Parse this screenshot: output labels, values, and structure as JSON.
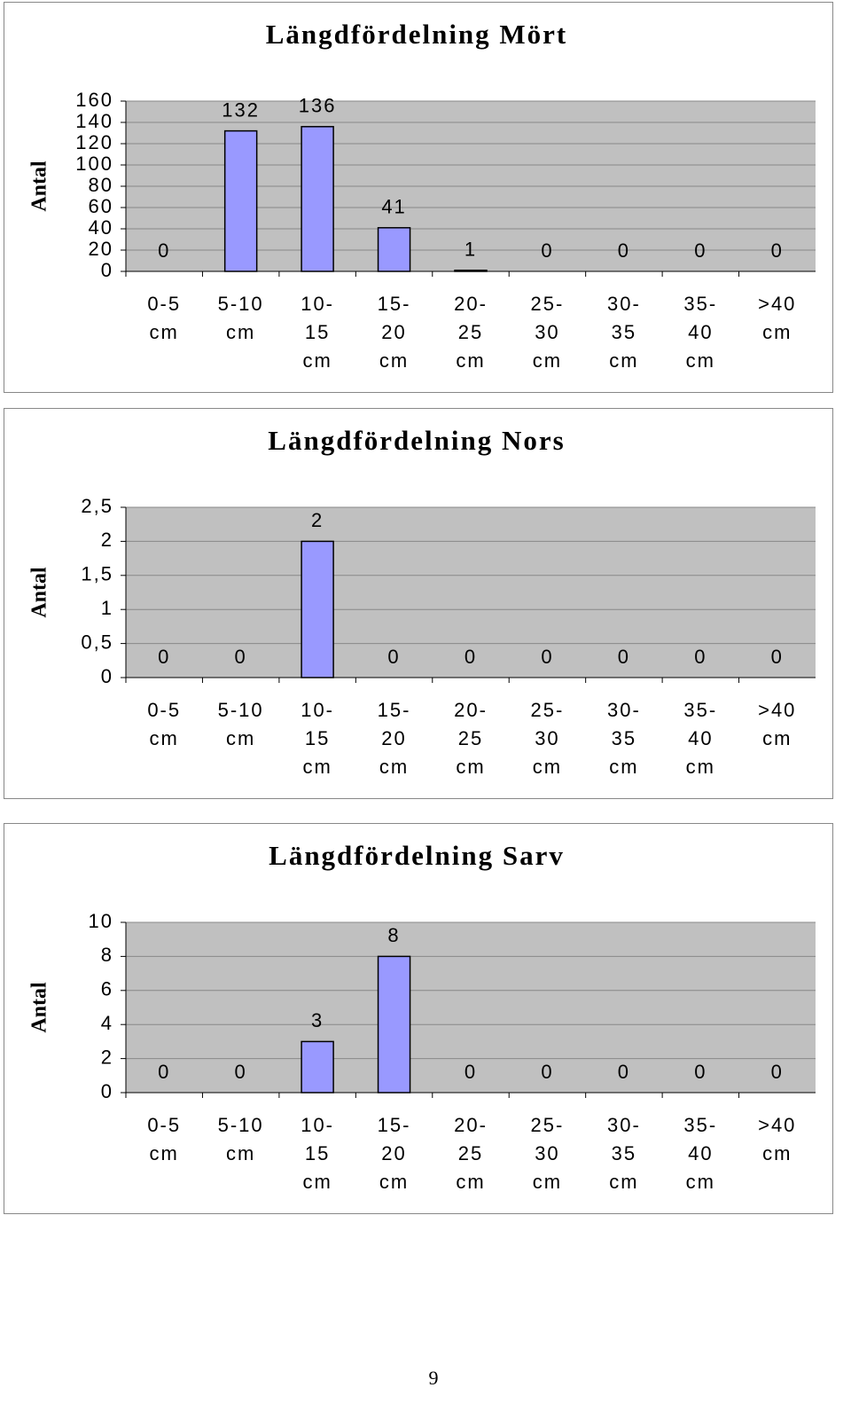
{
  "chart_data": [
    {
      "type": "bar",
      "title": "Längdfördelning Mört",
      "y_label": "Antal",
      "categories": [
        "0-5 cm",
        "5-10 cm",
        "10-15 cm",
        "15-20 cm",
        "20-25 cm",
        "25-30 cm",
        "30-35 cm",
        "35-40 cm",
        ">40 cm"
      ],
      "values": [
        0,
        132,
        136,
        41,
        1,
        0,
        0,
        0,
        0
      ],
      "color": "#9999ff",
      "ylim": [
        0,
        160
      ],
      "yticks": [
        0,
        20,
        40,
        60,
        80,
        100,
        120,
        140,
        160
      ],
      "grid": true
    },
    {
      "type": "bar",
      "title": "Längdfördelning Nors",
      "y_label": "Antal",
      "categories": [
        "0-5 cm",
        "5-10 cm",
        "10-15 cm",
        "15-20 cm",
        "20-25 cm",
        "25-30 cm",
        "30-35 cm",
        "35-40 cm",
        ">40 cm"
      ],
      "values": [
        0,
        0,
        2,
        0,
        0,
        0,
        0,
        0,
        0
      ],
      "color": "#9999ff",
      "ylim": [
        0,
        2.5
      ],
      "yticks": [
        0,
        {
          "value": 0.5,
          "label": "0,5"
        },
        1,
        {
          "value": 1.5,
          "label": "1,5"
        },
        2,
        {
          "value": 2.5,
          "label": "2,5"
        }
      ],
      "grid": true
    },
    {
      "type": "bar",
      "title": "Längdfördelning Sarv",
      "y_label": "Antal",
      "categories": [
        "0-5 cm",
        "5-10 cm",
        "10-15 cm",
        "15-20 cm",
        "20-25 cm",
        "25-30 cm",
        "30-35 cm",
        "35-40 cm",
        ">40 cm"
      ],
      "values": [
        0,
        0,
        3,
        8,
        0,
        0,
        0,
        0,
        0
      ],
      "color": "#9999ff",
      "ylim": [
        0,
        10
      ],
      "yticks": [
        0,
        2,
        4,
        6,
        8,
        10
      ],
      "grid": true
    }
  ],
  "page_number": 9
}
